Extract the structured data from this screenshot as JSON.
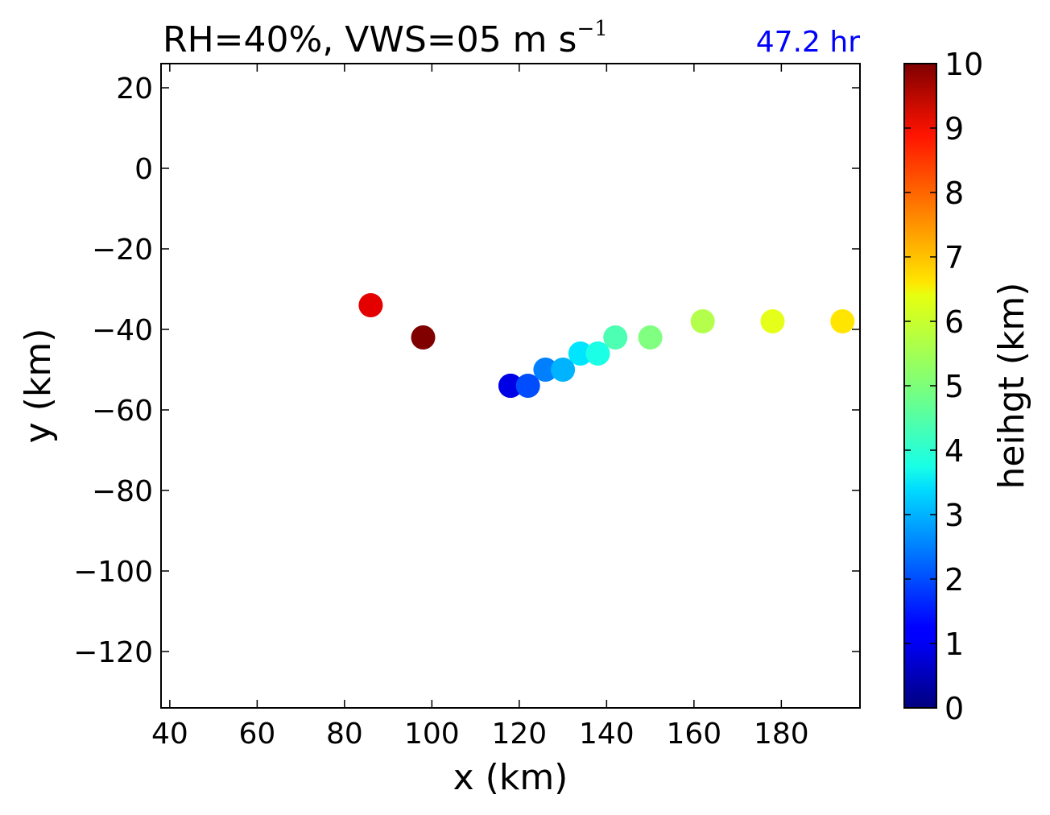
{
  "chart_data": {
    "type": "scatter",
    "title": "RH=40%, VWS=05 m s",
    "title_superscript": "−1",
    "annotation": "47.2 hr",
    "annotation_color": "#0000ff",
    "xlabel": "x (km)",
    "ylabel": "y (km)",
    "xlim": [
      38,
      198
    ],
    "ylim": [
      -134,
      26
    ],
    "xticks": [
      40,
      60,
      80,
      100,
      120,
      140,
      160,
      180
    ],
    "xtick_labels": [
      "40",
      "60",
      "80",
      "100",
      "120",
      "140",
      "160",
      "180"
    ],
    "yticks": [
      20,
      0,
      -20,
      -40,
      -60,
      -80,
      -100,
      -120
    ],
    "ytick_labels": [
      "20",
      "0",
      "−20",
      "−40",
      "−60",
      "−80",
      "−100",
      "−120"
    ],
    "grid": false,
    "colorbar": {
      "label": "heihgt (km)",
      "colormap": "jet",
      "range": [
        0,
        10
      ],
      "ticks": [
        0,
        1,
        2,
        3,
        4,
        5,
        6,
        7,
        8,
        9,
        10
      ],
      "tick_labels": [
        "0",
        "1",
        "2",
        "3",
        "4",
        "5",
        "6",
        "7",
        "8",
        "9",
        "10"
      ]
    },
    "points": [
      {
        "x": 118,
        "y": -54,
        "height": 0.5
      },
      {
        "x": 118,
        "y": -54,
        "height": 1.0
      },
      {
        "x": 122,
        "y": -54,
        "height": 2.0
      },
      {
        "x": 126,
        "y": -50,
        "height": 2.5
      },
      {
        "x": 130,
        "y": -50,
        "height": 3.0
      },
      {
        "x": 134,
        "y": -46,
        "height": 3.5
      },
      {
        "x": 138,
        "y": -46,
        "height": 4.0
      },
      {
        "x": 142,
        "y": -42,
        "height": 4.5
      },
      {
        "x": 150,
        "y": -42,
        "height": 5.0
      },
      {
        "x": 162,
        "y": -38,
        "height": 5.5
      },
      {
        "x": 178,
        "y": -38,
        "height": 6.0
      },
      {
        "x": 194,
        "y": -38,
        "height": 6.5
      },
      {
        "x": 86,
        "y": -34,
        "height": 9.0
      },
      {
        "x": 98,
        "y": -42,
        "height": 10.0
      }
    ]
  }
}
